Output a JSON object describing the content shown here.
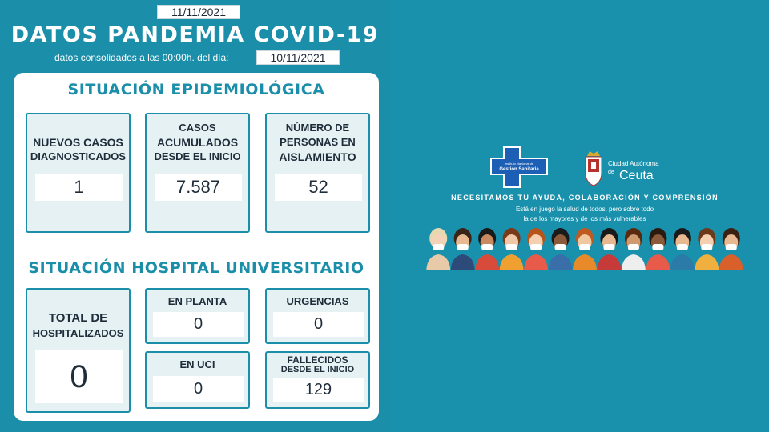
{
  "header": {
    "report_date": "11/11/2021",
    "title": "DATOS PANDEMIA COVID-19",
    "subtitle": "datos consolidados a las 00:00h. del día:",
    "data_date": "10/11/2021"
  },
  "epidemiological": {
    "title": "SITUACIÓN EPIDEMIOLÓGICA",
    "new_cases": {
      "label_line1": "NUEVOS CASOS",
      "label_line2": "DIAGNOSTICADOS",
      "value": "1"
    },
    "accumulated": {
      "label_line1": "CASOS",
      "label_line2": "ACUMULADOS",
      "label_line3": "DESDE EL INICIO",
      "value": "7.587"
    },
    "isolation": {
      "label_line1": "NÚMERO DE",
      "label_line2": "PERSONAS EN",
      "label_line3": "AISLAMIENTO",
      "value": "52"
    }
  },
  "hospital": {
    "title": "SITUACIÓN HOSPITAL UNIVERSITARIO",
    "total": {
      "label_line1": "TOTAL DE",
      "label_line2": "HOSPITALIZADOS",
      "value": "0"
    },
    "ward": {
      "label": "EN PLANTA",
      "value": "0"
    },
    "emergency": {
      "label": "URGENCIAS",
      "value": "0"
    },
    "icu": {
      "label": "EN UCI",
      "value": "0"
    },
    "deceased": {
      "label_line1": "FALLECIDOS",
      "label_line2": "DESDE EL INICIO",
      "value": "129"
    }
  },
  "logos": {
    "gestion_small": "Instituto Nacional de",
    "gestion": "Gestión Sanitaria",
    "ceuta_line1": "Ciudad Autónoma",
    "ceuta_line2": "de",
    "ceuta_name": "Ceuta"
  },
  "campaign": {
    "line1": "NECESITAMOS TU AYUDA, COLABORACIÓN Y COMPRENSIÓN",
    "line2": "Está en juego la salud de todos, pero sobre todo",
    "line3": "la de los mayores y de los más vulnerables"
  },
  "colors": {
    "background": "#1b8ea9",
    "accent": "#1b8ea9",
    "card": "#ffffff",
    "box_fill": "#e6f1f4",
    "text_dark": "#1f2d3a"
  }
}
